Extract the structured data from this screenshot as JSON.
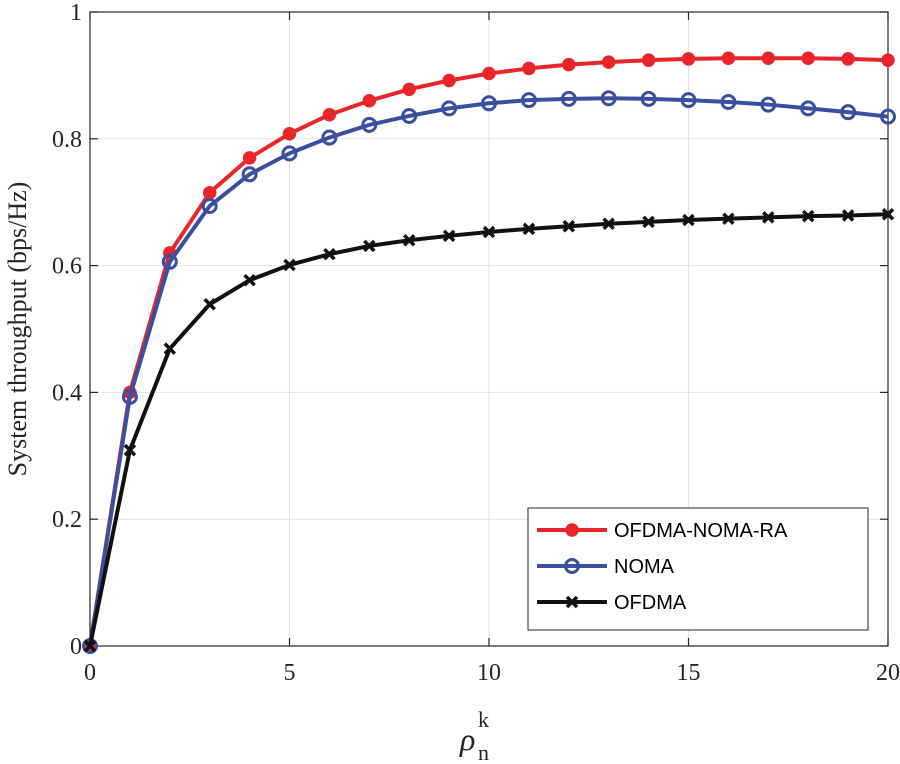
{
  "chart_data": {
    "type": "line",
    "title": "",
    "xlabel": "ρ",
    "xlabel_superscript": "k",
    "xlabel_subscript": "n",
    "ylabel": "System throughput (bps/Hz)",
    "xlim": [
      0,
      20
    ],
    "ylim": [
      0,
      1
    ],
    "xticks": [
      0,
      5,
      10,
      15,
      20
    ],
    "yticks": [
      0,
      0.2,
      0.4,
      0.6,
      0.8,
      1
    ],
    "xtick_labels": [
      "0",
      "5",
      "10",
      "15",
      "20"
    ],
    "ytick_labels": [
      "0",
      "0.2",
      "0.4",
      "0.6",
      "0.8",
      "1"
    ],
    "grid": true,
    "legend_position": "bottom-right",
    "x": [
      0,
      1,
      2,
      3,
      4,
      5,
      6,
      7,
      8,
      9,
      10,
      11,
      12,
      13,
      14,
      15,
      16,
      17,
      18,
      19,
      20
    ],
    "series": [
      {
        "name": "OFDMA-NOMA-RA",
        "color": "#e8262a",
        "marker": "filled-circle",
        "values": [
          0,
          0.4,
          0.62,
          0.715,
          0.77,
          0.808,
          0.838,
          0.86,
          0.878,
          0.892,
          0.903,
          0.911,
          0.917,
          0.921,
          0.924,
          0.926,
          0.927,
          0.927,
          0.927,
          0.926,
          0.924
        ]
      },
      {
        "name": "NOMA",
        "color": "#3b4fa0",
        "marker": "open-circle",
        "values": [
          0,
          0.393,
          0.606,
          0.694,
          0.744,
          0.777,
          0.802,
          0.822,
          0.836,
          0.848,
          0.856,
          0.861,
          0.863,
          0.864,
          0.863,
          0.861,
          0.858,
          0.854,
          0.848,
          0.842,
          0.835
        ]
      },
      {
        "name": "OFDMA",
        "color": "#111111",
        "marker": "x",
        "values": [
          0,
          0.309,
          0.469,
          0.539,
          0.577,
          0.601,
          0.618,
          0.631,
          0.64,
          0.647,
          0.653,
          0.658,
          0.662,
          0.666,
          0.669,
          0.672,
          0.674,
          0.676,
          0.678,
          0.679,
          0.681
        ]
      }
    ]
  }
}
